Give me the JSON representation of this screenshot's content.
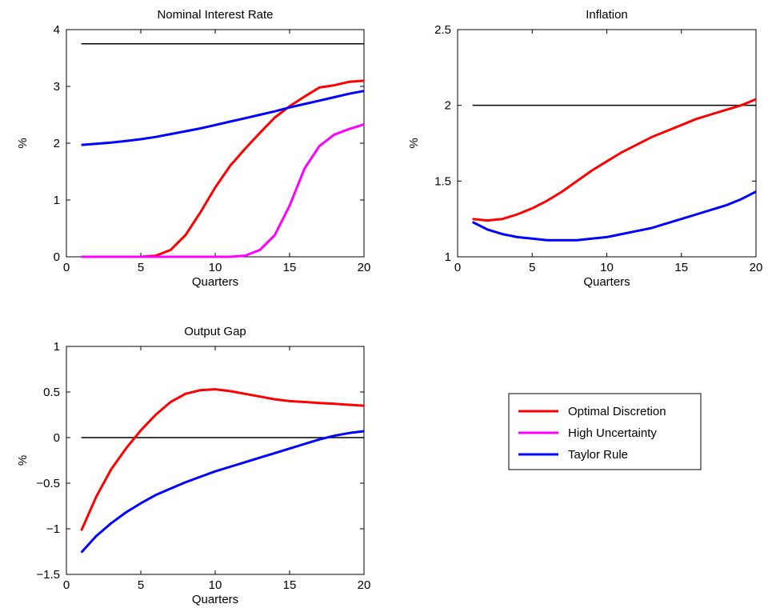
{
  "colors": {
    "optimal": "#ff0000",
    "uncertainty": "#ff00ff",
    "taylor": "#0000ff",
    "reference": "#000000"
  },
  "legend": {
    "placement": "bottom-right",
    "entries": [
      {
        "label": "Optimal Discretion",
        "color": "#ff0000"
      },
      {
        "label": "High Uncertainty",
        "color": "#ff00ff"
      },
      {
        "label": "Taylor Rule",
        "color": "#0000ff"
      }
    ]
  },
  "chart_data": [
    {
      "type": "line",
      "title": "Nominal Interest Rate",
      "xlabel": "Quarters",
      "ylabel": "%",
      "xlim": [
        0,
        20
      ],
      "ylim": [
        0,
        4
      ],
      "xticks": [
        0,
        5,
        10,
        15,
        20
      ],
      "yticks": [
        0,
        1,
        2,
        3,
        4
      ],
      "ytick_labels": [
        "0",
        "1",
        "2",
        "3",
        "4"
      ],
      "grid": false,
      "x": [
        1,
        2,
        3,
        4,
        5,
        6,
        7,
        8,
        9,
        10,
        11,
        12,
        13,
        14,
        15,
        16,
        17,
        18,
        19,
        20
      ],
      "reference_line": {
        "y": 3.75,
        "x": [
          1,
          20
        ]
      },
      "series": [
        {
          "name": "Optimal Discretion",
          "color": "#ff0000",
          "values": [
            0,
            0,
            0,
            0,
            0,
            0.02,
            0.12,
            0.38,
            0.78,
            1.22,
            1.6,
            1.9,
            2.18,
            2.45,
            2.65,
            2.82,
            2.98,
            3.02,
            3.08,
            3.1
          ]
        },
        {
          "name": "High Uncertainty",
          "color": "#ff00ff",
          "values": [
            0,
            0,
            0,
            0,
            0,
            0,
            0,
            0,
            0,
            0,
            0,
            0.02,
            0.12,
            0.38,
            0.9,
            1.55,
            1.95,
            2.15,
            2.25,
            2.33
          ]
        },
        {
          "name": "Taylor Rule",
          "color": "#0000ff",
          "values": [
            1.97,
            1.99,
            2.01,
            2.04,
            2.07,
            2.11,
            2.16,
            2.21,
            2.26,
            2.32,
            2.38,
            2.44,
            2.5,
            2.56,
            2.63,
            2.69,
            2.75,
            2.81,
            2.87,
            2.92
          ]
        }
      ]
    },
    {
      "type": "line",
      "title": "Inflation",
      "xlabel": "Quarters",
      "ylabel": "%",
      "xlim": [
        0,
        20
      ],
      "ylim": [
        1,
        2.5
      ],
      "xticks": [
        0,
        5,
        10,
        15,
        20
      ],
      "yticks": [
        1,
        1.5,
        2,
        2.5
      ],
      "ytick_labels": [
        "1",
        "1.5",
        "2",
        "2.5"
      ],
      "grid": false,
      "x": [
        1,
        2,
        3,
        4,
        5,
        6,
        7,
        8,
        9,
        10,
        11,
        12,
        13,
        14,
        15,
        16,
        17,
        18,
        19,
        20
      ],
      "reference_line": {
        "y": 2.0,
        "x": [
          1,
          20
        ]
      },
      "series": [
        {
          "name": "Optimal Discretion",
          "color": "#ff0000",
          "values": [
            1.25,
            1.24,
            1.25,
            1.28,
            1.32,
            1.37,
            1.43,
            1.5,
            1.57,
            1.63,
            1.69,
            1.74,
            1.79,
            1.83,
            1.87,
            1.91,
            1.94,
            1.97,
            2.0,
            2.04
          ]
        },
        {
          "name": "Taylor Rule",
          "color": "#0000ff",
          "values": [
            1.23,
            1.18,
            1.15,
            1.13,
            1.12,
            1.11,
            1.11,
            1.11,
            1.12,
            1.13,
            1.15,
            1.17,
            1.19,
            1.22,
            1.25,
            1.28,
            1.31,
            1.34,
            1.38,
            1.43
          ]
        }
      ]
    },
    {
      "type": "line",
      "title": "Output Gap",
      "xlabel": "Quarters",
      "ylabel": "%",
      "xlim": [
        0,
        20
      ],
      "ylim": [
        -1.5,
        1
      ],
      "xticks": [
        0,
        5,
        10,
        15,
        20
      ],
      "yticks": [
        -1.5,
        -1,
        -0.5,
        0,
        0.5,
        1
      ],
      "ytick_labels": [
        "−1.5",
        "−1",
        "−0.5",
        "0",
        "0.5",
        "1"
      ],
      "grid": false,
      "x": [
        1,
        2,
        3,
        4,
        5,
        6,
        7,
        8,
        9,
        10,
        11,
        12,
        13,
        14,
        15,
        16,
        17,
        18,
        19,
        20
      ],
      "reference_line": {
        "y": 0,
        "x": [
          1,
          20
        ]
      },
      "series": [
        {
          "name": "Optimal Discretion",
          "color": "#ff0000",
          "values": [
            -1.02,
            -0.65,
            -0.35,
            -0.12,
            0.08,
            0.25,
            0.39,
            0.48,
            0.52,
            0.53,
            0.51,
            0.48,
            0.45,
            0.42,
            0.4,
            0.39,
            0.38,
            0.37,
            0.36,
            0.35
          ]
        },
        {
          "name": "Taylor Rule",
          "color": "#0000ff",
          "values": [
            -1.26,
            -1.08,
            -0.94,
            -0.82,
            -0.72,
            -0.63,
            -0.56,
            -0.49,
            -0.43,
            -0.37,
            -0.32,
            -0.27,
            -0.22,
            -0.17,
            -0.12,
            -0.07,
            -0.02,
            0.02,
            0.05,
            0.07
          ]
        }
      ]
    }
  ]
}
